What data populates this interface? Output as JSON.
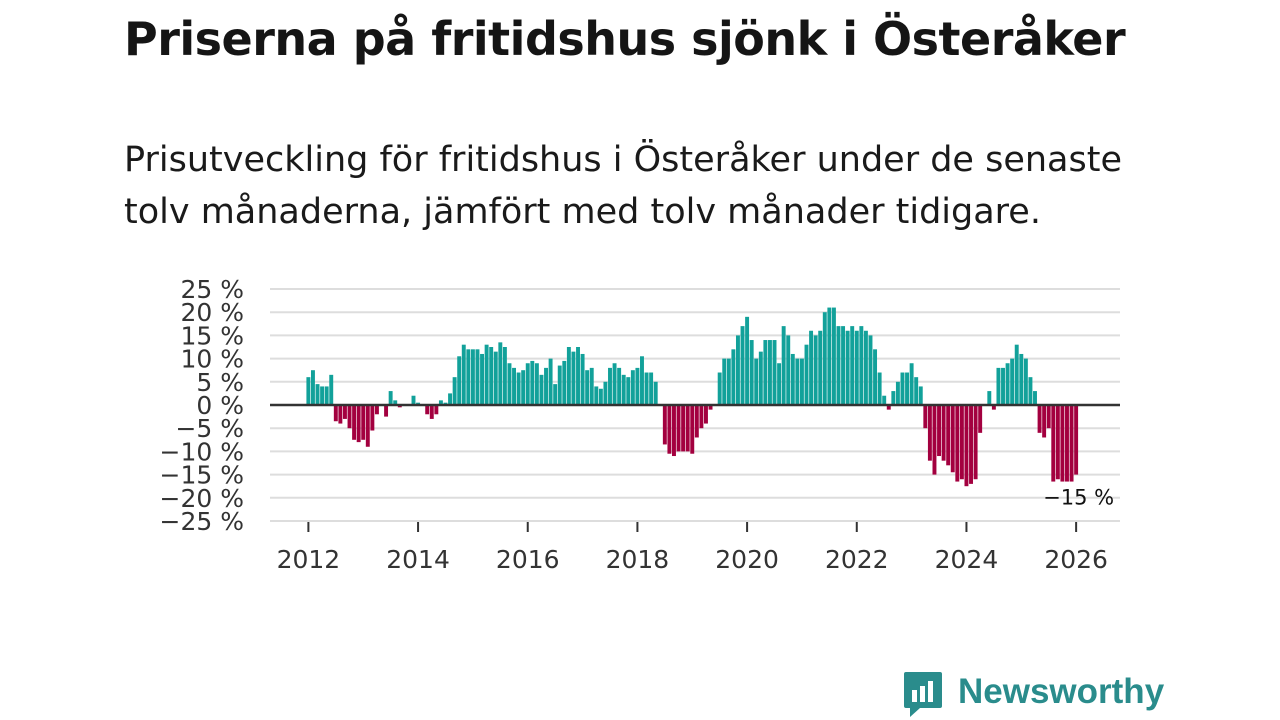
{
  "header": {
    "title": "Priserna på fritidshus sjönk i Österåker",
    "subtitle_line1": "Prisutveckling för fritidshus i Österåker under de senaste",
    "subtitle_line2": "tolv månaderna, jämfört med tolv månader tidigare."
  },
  "brand": {
    "name": "Newsworthy",
    "color": "#2a8c8c"
  },
  "colors": {
    "positive": "#12a19a",
    "negative": "#a3003f",
    "zero_line": "#333333",
    "grid": "#dddddd"
  },
  "chart_data": {
    "type": "bar",
    "title": "Priserna på fritidshus sjönk i Österåker",
    "xlabel": "",
    "ylabel": "",
    "ylim": [
      -25,
      25
    ],
    "yticks": [
      25,
      20,
      15,
      10,
      5,
      0,
      -5,
      -10,
      -15,
      -20,
      -25
    ],
    "ytick_labels": [
      "25 %",
      "20 %",
      "15 %",
      "10 %",
      "5 %",
      "0 %",
      "−5 %",
      "−10 %",
      "−15 %",
      "−20 %",
      "−25 %"
    ],
    "xlim": [
      2011.3,
      2026.8
    ],
    "xticks": [
      2012,
      2014,
      2016,
      2018,
      2020,
      2022,
      2024,
      2026
    ],
    "xtick_labels": [
      "2012",
      "2014",
      "2016",
      "2018",
      "2020",
      "2022",
      "2024",
      "2026"
    ],
    "start_year": 2012,
    "start_month": 1,
    "values": [
      6,
      7.5,
      4.5,
      4,
      4,
      6.5,
      -3.5,
      -4,
      -3,
      -5,
      -7.5,
      -8,
      -7.5,
      -9,
      -5.5,
      -2,
      null,
      -2.5,
      3,
      1,
      -0.5,
      null,
      null,
      2,
      0.5,
      null,
      -2,
      -3,
      -2,
      1,
      0.5,
      2.5,
      6,
      10.5,
      13,
      12,
      12,
      12,
      11,
      13,
      12.5,
      11.5,
      13.5,
      12.5,
      9,
      8,
      7,
      7.5,
      9,
      9.5,
      9,
      6.5,
      8,
      10,
      4.5,
      8.5,
      9.5,
      12.5,
      11.5,
      12.5,
      11,
      7.5,
      8,
      4,
      3.5,
      5,
      8,
      9,
      8,
      6.5,
      6,
      7.5,
      8,
      10.5,
      7,
      7,
      5,
      null,
      -8.5,
      -10.5,
      -11,
      -10,
      -10,
      -10,
      -10.5,
      -7,
      -5,
      -4,
      -1,
      null,
      7,
      10,
      10,
      12,
      15,
      17,
      19,
      14,
      10,
      11.5,
      14,
      14,
      14,
      9,
      17,
      15,
      11,
      10,
      10,
      13,
      16,
      15,
      16,
      20,
      21,
      21,
      17,
      17,
      16,
      17,
      16,
      17,
      16,
      15,
      12,
      7,
      2,
      -1,
      3,
      5,
      7,
      7,
      9,
      6,
      4,
      -5,
      -12,
      -15,
      -11,
      -12,
      -13,
      -14.5,
      -16.5,
      -16,
      -17.5,
      -17,
      -16,
      -6,
      null,
      3,
      -1,
      8,
      8,
      9,
      10,
      13,
      11,
      10,
      6,
      3,
      -6,
      -7,
      -5,
      -16.5,
      -16,
      -16.5,
      -16.5,
      -16.5,
      -15
    ],
    "annotations": [
      {
        "label": "−15 %",
        "target": "last_value"
      }
    ]
  }
}
